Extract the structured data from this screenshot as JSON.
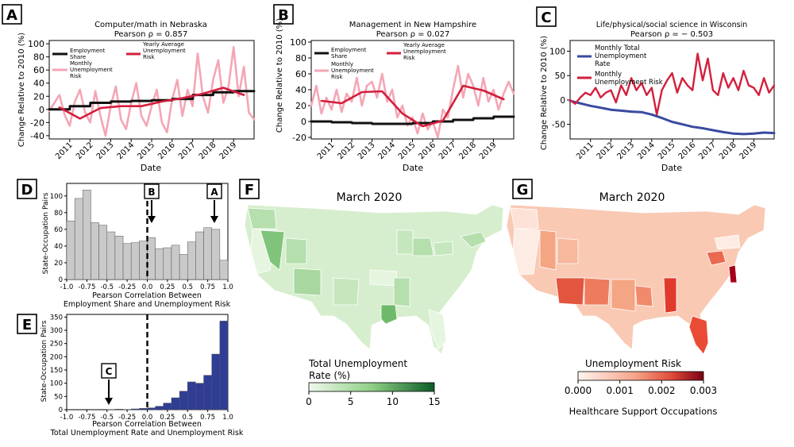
{
  "colors": {
    "black": "#111111",
    "pink": "#f4a6b4",
    "red": "#d31f3c",
    "navy": "#3a4aa0",
    "gray_bar": "#c9c9c9",
    "blue_bar": "#2f3d94",
    "green_light": "#f0f9ec",
    "green_dark": "#0b5d27",
    "red_light": "#fff4ee",
    "red_dark": "#7a0014"
  },
  "panels": {
    "A": {
      "label": "A",
      "title1": "Computer/math in Nebraska",
      "title2": "Pearson ρ = 0.857"
    },
    "B": {
      "label": "B",
      "title1": "Management in New Hampshire",
      "title2": "Pearson ρ = 0.027"
    },
    "C": {
      "label": "C",
      "title1": "Life/physical/social science in Wisconsin",
      "title2": "Pearson ρ = − 0.503"
    },
    "D": {
      "label": "D"
    },
    "E": {
      "label": "E"
    },
    "F": {
      "label": "F",
      "title": "March 2020",
      "cbar_title1": "Total Unemployment",
      "cbar_title2": "Rate (%)"
    },
    "G": {
      "label": "G",
      "title": "March 2020",
      "cbar_title": "Unemployment Risk",
      "cbar_subtitle": "Healthcare Support Occupations"
    }
  },
  "legends": {
    "A": {
      "emp1": "Employment",
      "emp2": "Share",
      "mon1": "Monthly",
      "mon2": "Unemployment",
      "mon3": "Risk",
      "yr1": "Yearly Average",
      "yr2": "Unemployment",
      "yr3": "Risk"
    },
    "B": {
      "emp1": "Employment",
      "emp2": "Share",
      "mon1": "Monthly",
      "mon2": "Unemployment",
      "mon3": "Risk",
      "yr1": "Yearly Average",
      "yr2": "Unemployment",
      "yr3": "Risk"
    },
    "C": {
      "tot1": "Monthly Total",
      "tot2": "Unemployment",
      "tot3": "Rate",
      "mon1": "Monthly",
      "mon2": "Unemployment Risk"
    }
  },
  "annotations": {
    "D_B": "B",
    "D_A": "A",
    "E_C": "C"
  },
  "chart_data": [
    {
      "id": "A",
      "type": "line",
      "title": "Computer/math in Nebraska",
      "subtitle": "Pearson ρ = 0.857",
      "xlabel": "Date",
      "ylabel": "Change Relative to 2010 (%)",
      "xlim": [
        2010,
        2020
      ],
      "ylim": [
        -45,
        105
      ],
      "yticks": [
        -40,
        -20,
        0,
        20,
        40,
        60,
        80,
        100
      ],
      "xticks": [
        "2011",
        "2012",
        "2013",
        "2014",
        "2015",
        "2016",
        "2017",
        "2018",
        "2019"
      ],
      "series": [
        {
          "name": "Employment Share",
          "color": "#111111",
          "x": [
            2010,
            2011,
            2011.01,
            2012,
            2012.01,
            2013,
            2013.01,
            2014,
            2014.01,
            2015,
            2015.01,
            2016,
            2016.01,
            2017,
            2017.01,
            2018,
            2018.01,
            2019,
            2019.01,
            2020
          ],
          "y": [
            0,
            0,
            5,
            5,
            10,
            10,
            12,
            12,
            13,
            13,
            14,
            14,
            16,
            16,
            22,
            22,
            26,
            26,
            28,
            28
          ]
        },
        {
          "name": "Yearly Average Unemployment Risk",
          "color": "#d31f3c",
          "x": [
            2010.5,
            2011.5,
            2012.5,
            2013.5,
            2014.5,
            2015.5,
            2016.5,
            2017.5,
            2018.5,
            2019.5
          ],
          "y": [
            3,
            -14,
            2,
            5,
            5,
            12,
            17,
            24,
            33,
            22
          ]
        },
        {
          "name": "Monthly Unemployment Risk",
          "color": "#f4a6b4",
          "x": [
            2010.0,
            2010.25,
            2010.5,
            2010.75,
            2011.0,
            2011.25,
            2011.5,
            2011.75,
            2012.0,
            2012.25,
            2012.5,
            2012.75,
            2013.0,
            2013.25,
            2013.5,
            2013.75,
            2014.0,
            2014.25,
            2014.5,
            2014.75,
            2015.0,
            2015.25,
            2015.5,
            2015.75,
            2016.0,
            2016.25,
            2016.5,
            2016.75,
            2017.0,
            2017.25,
            2017.5,
            2017.75,
            2018.0,
            2018.25,
            2018.5,
            2018.75,
            2019.0,
            2019.25,
            2019.5,
            2019.75,
            2020.0
          ],
          "y": [
            -2,
            10,
            22,
            -8,
            -25,
            12,
            30,
            -5,
            -20,
            28,
            -10,
            -40,
            5,
            35,
            -15,
            -30,
            10,
            40,
            -10,
            -25,
            5,
            30,
            -20,
            -35,
            15,
            45,
            -10,
            30,
            5,
            85,
            20,
            -5,
            45,
            75,
            10,
            35,
            95,
            20,
            65,
            -5,
            -15
          ]
        }
      ]
    },
    {
      "id": "B",
      "type": "line",
      "title": "Management in New Hampshire",
      "subtitle": "Pearson ρ = 0.027",
      "xlabel": "Date",
      "ylabel": "Change Relative to 2010 (%)",
      "xlim": [
        2010,
        2020
      ],
      "ylim": [
        -22,
        102
      ],
      "yticks": [
        -20,
        0,
        20,
        40,
        60,
        80,
        100
      ],
      "xticks": [
        "2011",
        "2012",
        "2013",
        "2014",
        "2015",
        "2016",
        "2017",
        "2018",
        "2019"
      ],
      "series": [
        {
          "name": "Employment Share",
          "color": "#111111",
          "x": [
            2010,
            2011,
            2011.01,
            2012,
            2012.01,
            2013,
            2013.01,
            2014,
            2014.01,
            2015,
            2015.01,
            2016,
            2016.01,
            2017,
            2017.01,
            2018,
            2018.01,
            2019,
            2019.01,
            2020
          ],
          "y": [
            0,
            0,
            -1,
            -1,
            -2,
            -2,
            -3,
            -3,
            -3,
            -3,
            -2,
            -2,
            0,
            0,
            2,
            2,
            4,
            4,
            6,
            6
          ]
        },
        {
          "name": "Yearly Average Unemployment Risk",
          "color": "#d31f3c",
          "x": [
            2010.5,
            2011.5,
            2012.5,
            2013.5,
            2014.5,
            2015.5,
            2016.5,
            2017.5,
            2018.5,
            2019.5
          ],
          "y": [
            26,
            23,
            37,
            38,
            10,
            -6,
            1,
            45,
            39,
            28
          ]
        },
        {
          "name": "Monthly Unemployment Risk",
          "color": "#f4a6b4",
          "x": [
            2010.0,
            2010.25,
            2010.5,
            2010.75,
            2011.0,
            2011.25,
            2011.5,
            2011.75,
            2012.0,
            2012.25,
            2012.5,
            2012.75,
            2013.0,
            2013.25,
            2013.5,
            2013.75,
            2014.0,
            2014.25,
            2014.5,
            2014.75,
            2015.0,
            2015.25,
            2015.5,
            2015.75,
            2016.0,
            2016.25,
            2016.5,
            2016.75,
            2017.0,
            2017.25,
            2017.5,
            2017.75,
            2018.0,
            2018.25,
            2018.5,
            2018.75,
            2019.0,
            2019.25,
            2019.5,
            2019.75,
            2020.0
          ],
          "y": [
            20,
            45,
            10,
            30,
            15,
            40,
            12,
            35,
            25,
            55,
            20,
            45,
            50,
            30,
            60,
            25,
            40,
            5,
            20,
            -5,
            5,
            -15,
            10,
            -10,
            0,
            -20,
            15,
            5,
            40,
            70,
            30,
            60,
            45,
            20,
            55,
            25,
            40,
            15,
            35,
            50,
            35
          ]
        }
      ]
    },
    {
      "id": "C",
      "type": "line",
      "title": "Life/physical/social science in Wisconsin",
      "subtitle": "Pearson ρ = − 0.503",
      "xlabel": "Date",
      "ylabel": "Change Relative to 2010 (%)",
      "xlim": [
        2010,
        2020
      ],
      "ylim": [
        -80,
        122
      ],
      "yticks": [
        -50,
        0,
        50,
        100
      ],
      "xticks": [
        "2011",
        "2012",
        "2013",
        "2014",
        "2015",
        "2016",
        "2017",
        "2018",
        "2019"
      ],
      "series": [
        {
          "name": "Monthly Total Unemployment Rate",
          "color": "#3a4aa0",
          "x": [
            2010,
            2010.5,
            2011,
            2011.5,
            2012,
            2012.5,
            2013,
            2013.5,
            2014,
            2014.5,
            2015,
            2015.5,
            2016,
            2016.5,
            2017,
            2017.5,
            2018,
            2018.5,
            2019,
            2019.5,
            2020
          ],
          "y": [
            -2,
            -7,
            -12,
            -16,
            -20,
            -22,
            -24,
            -25,
            -30,
            -37,
            -45,
            -50,
            -55,
            -58,
            -62,
            -66,
            -69,
            -70,
            -69,
            -67,
            -68
          ]
        },
        {
          "name": "Monthly Unemployment Risk",
          "color": "#d31f3c",
          "x": [
            2010.0,
            2010.25,
            2010.5,
            2010.75,
            2011.0,
            2011.25,
            2011.5,
            2011.75,
            2012.0,
            2012.25,
            2012.5,
            2012.75,
            2013.0,
            2013.25,
            2013.5,
            2013.75,
            2014.0,
            2014.25,
            2014.5,
            2014.75,
            2015.0,
            2015.25,
            2015.5,
            2015.75,
            2016.0,
            2016.25,
            2016.5,
            2016.75,
            2017.0,
            2017.25,
            2017.5,
            2017.75,
            2018.0,
            2018.25,
            2018.5,
            2018.75,
            2019.0,
            2019.25,
            2019.5,
            2019.75,
            2020.0
          ],
          "y": [
            0,
            -8,
            5,
            15,
            10,
            25,
            5,
            15,
            20,
            -5,
            30,
            10,
            45,
            20,
            35,
            10,
            25,
            -30,
            20,
            40,
            55,
            15,
            45,
            30,
            20,
            95,
            40,
            85,
            20,
            10,
            55,
            25,
            45,
            20,
            60,
            30,
            25,
            10,
            45,
            15,
            30
          ]
        }
      ]
    },
    {
      "id": "D",
      "type": "bar",
      "xlabel": "Pearson Correlation Between Employment Share and Unemployment Risk",
      "xlabel1": "Pearson Correlation Between",
      "xlabel2": "Employment Share and Unemployment Risk",
      "ylabel": "State-Occupation Pairs",
      "xlim": [
        -1.0,
        1.0
      ],
      "ylim": [
        0,
        115
      ],
      "xticks": [
        "-1.0",
        "-0.75",
        "-0.5",
        "-0.25",
        "0.0",
        "0.25",
        "0.5",
        "0.75",
        "1.0"
      ],
      "yticks": [
        0,
        20,
        40,
        60,
        80,
        100
      ],
      "bin_edges": [
        -1.0,
        -0.9,
        -0.8,
        -0.7,
        -0.6,
        -0.5,
        -0.4,
        -0.3,
        -0.2,
        -0.1,
        0.0,
        0.1,
        0.2,
        0.3,
        0.4,
        0.5,
        0.6,
        0.7,
        0.8,
        0.9,
        1.0
      ],
      "values": [
        70,
        97,
        107,
        68,
        65,
        57,
        52,
        43,
        44,
        46,
        50,
        37,
        38,
        41,
        30,
        45,
        57,
        62,
        60,
        23
      ],
      "color": "#c9c9c9",
      "reference_line_x": 0.0,
      "markers": [
        {
          "label": "B",
          "x": 0.03
        },
        {
          "label": "A",
          "x": 0.85
        }
      ]
    },
    {
      "id": "E",
      "type": "bar",
      "xlabel": "Pearson Correlation Between Total Unemployment Rate and Unemployment Risk",
      "xlabel1": "Pearson Correlation Between",
      "xlabel2": "Total Unemployment Rate and Unemployment Risk",
      "ylabel": "State-Occupation Pairs",
      "xlim": [
        -1.0,
        1.0
      ],
      "ylim": [
        0,
        360
      ],
      "xticks": [
        "-1.0",
        "-0.75",
        "-0.5",
        "-0.25",
        "0.0",
        "0.25",
        "0.5",
        "0.75",
        "1.0"
      ],
      "yticks": [
        0,
        50,
        100,
        150,
        200,
        250,
        300,
        350
      ],
      "bin_edges": [
        -1.0,
        -0.9,
        -0.8,
        -0.7,
        -0.6,
        -0.5,
        -0.4,
        -0.3,
        -0.2,
        -0.1,
        0.0,
        0.1,
        0.2,
        0.3,
        0.4,
        0.5,
        0.6,
        0.7,
        0.8,
        0.9,
        1.0
      ],
      "values": [
        0,
        0,
        0,
        0,
        0,
        1,
        2,
        1,
        3,
        5,
        7,
        13,
        25,
        45,
        70,
        105,
        100,
        130,
        210,
        335
      ],
      "color": "#2f3d94",
      "reference_line_x": 0.0,
      "markers": [
        {
          "label": "C",
          "x": -0.48
        }
      ]
    },
    {
      "id": "F",
      "type": "heatmap",
      "title": "March 2020",
      "colorbar_label": "Total Unemployment Rate (%)",
      "colorbar_ticks": [
        "0",
        "5",
        "10",
        "15"
      ],
      "colorbar_range": [
        0,
        15
      ]
    },
    {
      "id": "G",
      "type": "heatmap",
      "title": "March 2020",
      "colorbar_label": "Unemployment Risk",
      "colorbar_subtitle": "Healthcare Support Occupations",
      "colorbar_ticks": [
        "0.000",
        "0.001",
        "0.002",
        "0.003"
      ],
      "colorbar_range": [
        0,
        0.003
      ]
    }
  ]
}
